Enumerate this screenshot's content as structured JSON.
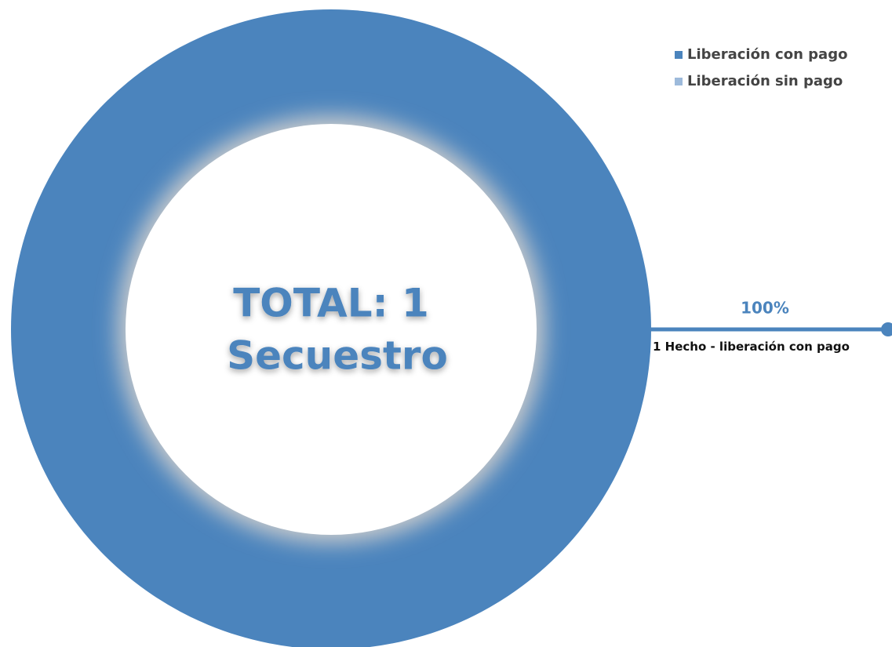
{
  "chart_data": {
    "type": "pie",
    "donut": true,
    "categories": [
      "Liberación con pago",
      "Liberación sin pago"
    ],
    "values": [
      100,
      0
    ],
    "value_labels": [
      "100%",
      null
    ],
    "colors": [
      "#4b84bd",
      "#9dbadb"
    ],
    "center_text": [
      "TOTAL: 1",
      "Secuestro"
    ],
    "annotation": "1 Hecho - liberación con pago",
    "legend": "top-right"
  }
}
